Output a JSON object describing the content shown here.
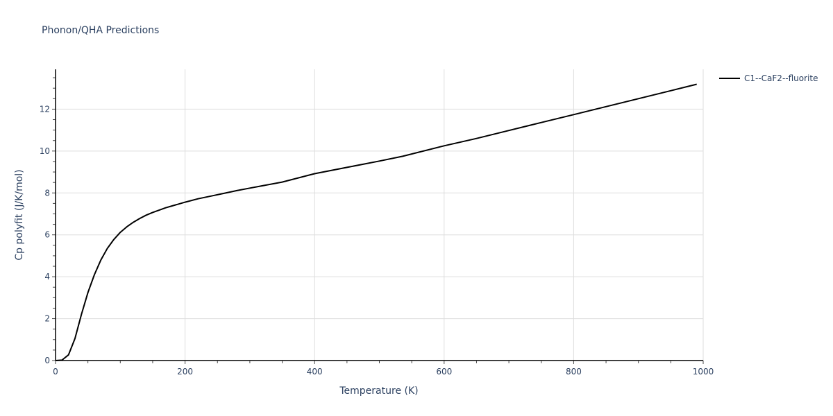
{
  "title": "Phonon/QHA Predictions",
  "legend": {
    "entries": [
      {
        "label": "C1--CaF2--fluorite",
        "color": "#000000"
      }
    ]
  },
  "chart_data": {
    "type": "line",
    "title": "Phonon/QHA Predictions",
    "xlabel": "Temperature (K)",
    "ylabel": "Cp polyfit (J/K/mol)",
    "xlim": [
      0,
      1000
    ],
    "ylim": [
      0,
      13.9
    ],
    "x_ticks": [
      0,
      200,
      400,
      600,
      800,
      1000
    ],
    "y_ticks": [
      0,
      2,
      4,
      6,
      8,
      10,
      12
    ],
    "grid": true,
    "legend_position": "top-right outside",
    "series": [
      {
        "name": "C1--CaF2--fluorite",
        "color": "#000000",
        "x": [
          0,
          10,
          20,
          30,
          40,
          50,
          60,
          70,
          80,
          90,
          100,
          110,
          120,
          130,
          140,
          150,
          160,
          170,
          180,
          190,
          200,
          220,
          240,
          260,
          280,
          300,
          350,
          400,
          450,
          500,
          536,
          600,
          650,
          700,
          750,
          800,
          850,
          900,
          950,
          990
        ],
        "y": [
          0,
          0.02,
          0.27,
          1.05,
          2.2,
          3.25,
          4.1,
          4.8,
          5.35,
          5.78,
          6.12,
          6.38,
          6.6,
          6.78,
          6.94,
          7.07,
          7.18,
          7.29,
          7.38,
          7.47,
          7.56,
          7.72,
          7.85,
          7.98,
          8.11,
          8.23,
          8.52,
          8.92,
          9.22,
          9.52,
          9.75,
          10.25,
          10.6,
          10.98,
          11.36,
          11.74,
          12.12,
          12.5,
          12.88,
          13.19
        ]
      }
    ]
  }
}
